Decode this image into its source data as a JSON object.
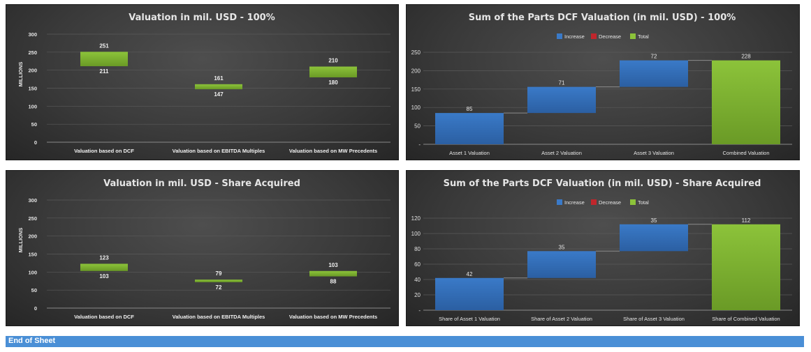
{
  "colors": {
    "green": "#8cc33a",
    "green_dark": "#6a9a26",
    "blue": "#3a7ac8",
    "blue_dark": "#2b5fa2",
    "red": "#c0262c",
    "grid": "#5a5a5a",
    "connector": "#8c8c8c",
    "footer": "#4a8fd6"
  },
  "footer": {
    "label": "End of Sheet"
  },
  "chart_data": [
    {
      "type": "bar",
      "subtype": "floating-range",
      "title": "Valuation in mil. USD - 100%",
      "ylabel": "MILLIONS",
      "ylim": [
        0,
        300
      ],
      "yticks": [
        "0",
        "50",
        "100",
        "150",
        "200",
        "250",
        "300"
      ],
      "categories": [
        "Valuation based on DCF",
        "Valuation based on EBITDA Multiples",
        "Valuation based on MW Precedents"
      ],
      "low": [
        211,
        147,
        180
      ],
      "high": [
        251,
        161,
        210
      ],
      "low_labels": [
        "211",
        "147",
        "180"
      ],
      "high_labels": [
        "251",
        "161",
        "210"
      ],
      "grid": true
    },
    {
      "type": "bar",
      "subtype": "waterfall",
      "title": "Sum of the Parts DCF Valuation (in mil. USD) - 100%",
      "legend": [
        "Increase",
        "Decrease",
        "Total"
      ],
      "legend_position": "top",
      "ylim": [
        0,
        250
      ],
      "yticks": [
        "-",
        "50",
        "100",
        "150",
        "200",
        "250"
      ],
      "categories": [
        "Asset 1 Valuation",
        "Asset 2 Valuation",
        "Asset 3 Valuation",
        "Combined Valuation"
      ],
      "values": [
        85,
        71,
        72,
        228
      ],
      "labels": [
        "85",
        "71",
        "72",
        "228"
      ],
      "kinds": [
        "increase",
        "increase",
        "increase",
        "total"
      ],
      "grid": true
    },
    {
      "type": "bar",
      "subtype": "floating-range",
      "title": "Valuation in mil. USD - Share Acquired",
      "ylabel": "MILLIONS",
      "ylim": [
        0,
        300
      ],
      "yticks": [
        "0",
        "50",
        "100",
        "150",
        "200",
        "250",
        "300"
      ],
      "categories": [
        "Valuation based on DCF",
        "Valuation based on EBITDA Multiples",
        "Valuation based on MW Precedents"
      ],
      "low": [
        103,
        72,
        88
      ],
      "high": [
        123,
        79,
        103
      ],
      "low_labels": [
        "103",
        "72",
        "88"
      ],
      "high_labels": [
        "123",
        "79",
        "103"
      ],
      "grid": true
    },
    {
      "type": "bar",
      "subtype": "waterfall",
      "title": "Sum of the Parts DCF Valuation (in mil. USD) - Share Acquired",
      "legend": [
        "Increase",
        "Decrease",
        "Total"
      ],
      "legend_position": "top",
      "ylim": [
        0,
        120
      ],
      "yticks": [
        "-",
        "20",
        "40",
        "60",
        "80",
        "100",
        "120"
      ],
      "categories": [
        "Share of Asset 1 Valuation",
        "Share of Asset 2 Valuation",
        "Share of Asset 3 Valuation",
        "Share of Combined Valuation"
      ],
      "values": [
        42,
        35,
        35,
        112
      ],
      "labels": [
        "42",
        "35",
        "35",
        "112"
      ],
      "kinds": [
        "increase",
        "increase",
        "increase",
        "total"
      ],
      "grid": true
    }
  ]
}
